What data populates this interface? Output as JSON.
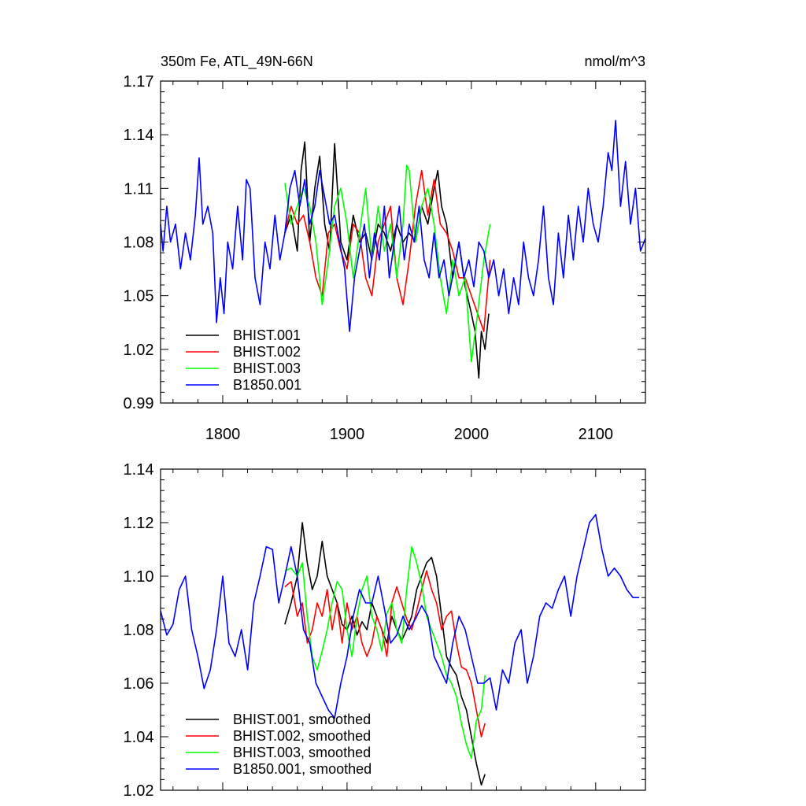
{
  "chart_data": [
    {
      "type": "line",
      "title": "350m Fe, ATL_49N-66N",
      "units": "nmol/m^3",
      "xlim": [
        1750,
        2140
      ],
      "ylim": [
        0.99,
        1.17
      ],
      "xticks": [
        1800,
        1900,
        2000,
        2100
      ],
      "xtick_labels": [
        "1800",
        "1900",
        "2000",
        "2100"
      ],
      "yticks": [
        0.99,
        1.02,
        1.05,
        1.08,
        1.11,
        1.14,
        1.17
      ],
      "ytick_labels": [
        "0.99",
        "1.02",
        "1.05",
        "1.08",
        "1.11",
        "1.14",
        "1.17"
      ],
      "legend_position": "bottom-left",
      "series": [
        {
          "name": "BHIST.001",
          "color": "#000000",
          "x": [
            1850,
            1855,
            1860,
            1863,
            1866,
            1870,
            1874,
            1878,
            1882,
            1886,
            1890,
            1895,
            1900,
            1905,
            1910,
            1915,
            1920,
            1925,
            1930,
            1935,
            1940,
            1945,
            1950,
            1955,
            1960,
            1965,
            1970,
            1973,
            1976,
            1980,
            1985,
            1990,
            1995,
            2000,
            2003,
            2006,
            2008,
            2011,
            2014
          ],
          "y": [
            1.085,
            1.095,
            1.075,
            1.12,
            1.136,
            1.08,
            1.11,
            1.128,
            1.09,
            1.075,
            1.135,
            1.08,
            1.07,
            1.095,
            1.08,
            1.085,
            1.07,
            1.09,
            1.085,
            1.075,
            1.09,
            1.08,
            1.085,
            1.08,
            1.1,
            1.09,
            1.11,
            1.12,
            1.1,
            1.09,
            1.06,
            1.08,
            1.055,
            1.04,
            1.03,
            1.004,
            1.03,
            1.02,
            1.04
          ]
        },
        {
          "name": "BHIST.002",
          "color": "#ff0000",
          "x": [
            1850,
            1855,
            1860,
            1865,
            1870,
            1875,
            1880,
            1885,
            1890,
            1895,
            1900,
            1905,
            1910,
            1915,
            1920,
            1925,
            1930,
            1935,
            1940,
            1945,
            1950,
            1955,
            1960,
            1965,
            1970,
            1975,
            1980,
            1985,
            1990,
            1995,
            2000,
            2005,
            2010,
            2015
          ],
          "y": [
            1.085,
            1.1,
            1.09,
            1.095,
            1.08,
            1.06,
            1.05,
            1.085,
            1.09,
            1.075,
            1.065,
            1.09,
            1.085,
            1.06,
            1.05,
            1.08,
            1.09,
            1.1,
            1.06,
            1.045,
            1.07,
            1.1,
            1.12,
            1.095,
            1.115,
            1.09,
            1.085,
            1.075,
            1.06,
            1.06,
            1.05,
            1.04,
            1.03,
            1.07
          ]
        },
        {
          "name": "BHIST.003",
          "color": "#00ff00",
          "x": [
            1850,
            1855,
            1860,
            1865,
            1870,
            1875,
            1880,
            1885,
            1890,
            1895,
            1900,
            1905,
            1910,
            1915,
            1920,
            1925,
            1930,
            1935,
            1940,
            1945,
            1948,
            1950,
            1955,
            1960,
            1965,
            1970,
            1975,
            1980,
            1985,
            1990,
            1995,
            2000,
            2005,
            2010,
            2015
          ],
          "y": [
            1.113,
            1.09,
            1.1,
            1.11,
            1.1,
            1.08,
            1.045,
            1.07,
            1.1,
            1.11,
            1.09,
            1.06,
            1.085,
            1.11,
            1.07,
            1.1,
            1.075,
            1.09,
            1.06,
            1.09,
            1.123,
            1.12,
            1.08,
            1.1,
            1.11,
            1.09,
            1.06,
            1.04,
            1.07,
            1.05,
            1.06,
            1.013,
            1.04,
            1.07,
            1.09
          ]
        },
        {
          "name": "B1850.001",
          "color": "#0000ff",
          "x": [
            1750,
            1752,
            1755,
            1758,
            1762,
            1766,
            1770,
            1774,
            1778,
            1781,
            1784,
            1788,
            1792,
            1795,
            1798,
            1801,
            1804,
            1808,
            1812,
            1816,
            1819,
            1822,
            1826,
            1830,
            1834,
            1838,
            1842,
            1846,
            1850,
            1854,
            1858,
            1862,
            1866,
            1870,
            1874,
            1878,
            1882,
            1886,
            1890,
            1894,
            1898,
            1902,
            1906,
            1910,
            1914,
            1918,
            1922,
            1926,
            1930,
            1934,
            1938,
            1942,
            1946,
            1950,
            1954,
            1958,
            1962,
            1966,
            1970,
            1974,
            1978,
            1982,
            1986,
            1990,
            1994,
            1998,
            2002,
            2006,
            2010,
            2014,
            2018,
            2022,
            2026,
            2030,
            2034,
            2038,
            2042,
            2046,
            2050,
            2054,
            2058,
            2062,
            2066,
            2070,
            2074,
            2078,
            2082,
            2086,
            2090,
            2094,
            2098,
            2102,
            2106,
            2110,
            2113,
            2116,
            2120,
            2124,
            2128,
            2132,
            2136,
            2140
          ],
          "y": [
            1.09,
            1.075,
            1.1,
            1.08,
            1.09,
            1.065,
            1.085,
            1.07,
            1.095,
            1.127,
            1.09,
            1.1,
            1.085,
            1.035,
            1.06,
            1.04,
            1.08,
            1.065,
            1.1,
            1.07,
            1.115,
            1.11,
            1.06,
            1.045,
            1.08,
            1.065,
            1.095,
            1.07,
            1.085,
            1.11,
            1.12,
            1.1,
            1.115,
            1.09,
            1.1,
            1.12,
            1.105,
            1.09,
            1.095,
            1.08,
            1.065,
            1.03,
            1.06,
            1.075,
            1.09,
            1.06,
            1.085,
            1.07,
            1.1,
            1.06,
            1.08,
            1.1,
            1.07,
            1.09,
            1.08,
            1.1,
            1.07,
            1.06,
            1.085,
            1.06,
            1.07,
            1.05,
            1.065,
            1.08,
            1.06,
            1.07,
            1.055,
            1.08,
            1.075,
            1.06,
            1.07,
            1.05,
            1.065,
            1.04,
            1.06,
            1.045,
            1.08,
            1.06,
            1.05,
            1.07,
            1.1,
            1.06,
            1.045,
            1.085,
            1.06,
            1.095,
            1.07,
            1.1,
            1.08,
            1.11,
            1.09,
            1.08,
            1.1,
            1.13,
            1.12,
            1.148,
            1.1,
            1.125,
            1.09,
            1.11,
            1.075,
            1.082
          ]
        }
      ]
    },
    {
      "type": "line",
      "xlim": [
        1750,
        2140
      ],
      "ylim": [
        1.02,
        1.14
      ],
      "xticks": [
        1800,
        1900,
        2000,
        2100
      ],
      "yticks": [
        1.02,
        1.04,
        1.06,
        1.08,
        1.1,
        1.12,
        1.14
      ],
      "ytick_labels": [
        "1.02",
        "1.04",
        "1.06",
        "1.08",
        "1.10",
        "1.12",
        "1.14"
      ],
      "legend_position": "bottom-left",
      "series": [
        {
          "name": "BHIST.001, smoothed",
          "color": "#000000",
          "x": [
            1850,
            1855,
            1860,
            1864,
            1868,
            1872,
            1876,
            1880,
            1884,
            1888,
            1892,
            1896,
            1900,
            1904,
            1908,
            1912,
            1916,
            1920,
            1924,
            1928,
            1932,
            1936,
            1940,
            1944,
            1948,
            1952,
            1956,
            1960,
            1964,
            1968,
            1972,
            1976,
            1980,
            1984,
            1988,
            1992,
            1996,
            2000,
            2004,
            2008,
            2011
          ],
          "y": [
            1.082,
            1.09,
            1.1,
            1.12,
            1.105,
            1.095,
            1.1,
            1.113,
            1.1,
            1.095,
            1.09,
            1.082,
            1.08,
            1.085,
            1.078,
            1.083,
            1.08,
            1.09,
            1.085,
            1.08,
            1.075,
            1.085,
            1.08,
            1.076,
            1.08,
            1.085,
            1.095,
            1.1,
            1.105,
            1.107,
            1.1,
            1.085,
            1.07,
            1.066,
            1.063,
            1.055,
            1.05,
            1.04,
            1.03,
            1.022,
            1.026
          ]
        },
        {
          "name": "BHIST.002, smoothed",
          "color": "#ff0000",
          "x": [
            1850,
            1855,
            1860,
            1864,
            1868,
            1872,
            1876,
            1880,
            1884,
            1888,
            1892,
            1896,
            1900,
            1904,
            1908,
            1912,
            1916,
            1920,
            1924,
            1928,
            1932,
            1936,
            1940,
            1944,
            1948,
            1952,
            1956,
            1960,
            1964,
            1968,
            1972,
            1976,
            1980,
            1984,
            1988,
            1992,
            1996,
            2000,
            2004,
            2008,
            2011
          ],
          "y": [
            1.096,
            1.098,
            1.085,
            1.09,
            1.075,
            1.08,
            1.09,
            1.085,
            1.095,
            1.08,
            1.09,
            1.075,
            1.09,
            1.08,
            1.085,
            1.075,
            1.07,
            1.075,
            1.085,
            1.08,
            1.07,
            1.09,
            1.096,
            1.09,
            1.084,
            1.08,
            1.087,
            1.095,
            1.102,
            1.095,
            1.09,
            1.08,
            1.085,
            1.087,
            1.075,
            1.066,
            1.065,
            1.06,
            1.05,
            1.04,
            1.045
          ]
        },
        {
          "name": "BHIST.003, smoothed",
          "color": "#00ff00",
          "x": [
            1850,
            1855,
            1860,
            1864,
            1868,
            1872,
            1876,
            1880,
            1884,
            1888,
            1892,
            1896,
            1900,
            1904,
            1908,
            1912,
            1916,
            1920,
            1924,
            1928,
            1932,
            1936,
            1940,
            1944,
            1948,
            1952,
            1956,
            1960,
            1964,
            1968,
            1972,
            1976,
            1980,
            1984,
            1988,
            1992,
            1996,
            2000,
            2004,
            2008,
            2011
          ],
          "y": [
            1.102,
            1.103,
            1.1,
            1.105,
            1.085,
            1.07,
            1.065,
            1.072,
            1.08,
            1.09,
            1.098,
            1.095,
            1.08,
            1.07,
            1.085,
            1.095,
            1.1,
            1.085,
            1.08,
            1.072,
            1.086,
            1.09,
            1.08,
            1.075,
            1.095,
            1.111,
            1.105,
            1.097,
            1.085,
            1.08,
            1.075,
            1.07,
            1.063,
            1.06,
            1.055,
            1.045,
            1.037,
            1.032,
            1.046,
            1.05,
            1.063
          ]
        },
        {
          "name": "B1850.001, smoothed",
          "color": "#0000ff",
          "x": [
            1750,
            1755,
            1760,
            1765,
            1770,
            1775,
            1780,
            1785,
            1790,
            1795,
            1800,
            1805,
            1810,
            1815,
            1820,
            1825,
            1830,
            1835,
            1840,
            1845,
            1850,
            1855,
            1860,
            1865,
            1870,
            1875,
            1880,
            1885,
            1890,
            1895,
            1900,
            1905,
            1910,
            1915,
            1920,
            1925,
            1930,
            1935,
            1940,
            1945,
            1950,
            1955,
            1960,
            1965,
            1970,
            1975,
            1980,
            1985,
            1990,
            1995,
            2000,
            2005,
            2010,
            2015,
            2020,
            2025,
            2030,
            2035,
            2040,
            2045,
            2050,
            2055,
            2060,
            2065,
            2070,
            2075,
            2080,
            2085,
            2090,
            2095,
            2100,
            2105,
            2110,
            2115,
            2120,
            2125,
            2130,
            2135
          ],
          "y": [
            1.087,
            1.078,
            1.082,
            1.095,
            1.1,
            1.08,
            1.07,
            1.058,
            1.065,
            1.08,
            1.1,
            1.075,
            1.07,
            1.08,
            1.065,
            1.09,
            1.1,
            1.111,
            1.11,
            1.09,
            1.1,
            1.111,
            1.1,
            1.08,
            1.075,
            1.06,
            1.055,
            1.05,
            1.047,
            1.06,
            1.07,
            1.085,
            1.095,
            1.09,
            1.09,
            1.1,
            1.088,
            1.075,
            1.078,
            1.085,
            1.08,
            1.084,
            1.089,
            1.085,
            1.07,
            1.065,
            1.06,
            1.075,
            1.085,
            1.08,
            1.07,
            1.06,
            1.06,
            1.062,
            1.05,
            1.065,
            1.06,
            1.075,
            1.08,
            1.06,
            1.07,
            1.085,
            1.09,
            1.088,
            1.095,
            1.1,
            1.085,
            1.1,
            1.11,
            1.12,
            1.123,
            1.11,
            1.1,
            1.103,
            1.1,
            1.095,
            1.092,
            1.092
          ]
        }
      ]
    }
  ]
}
